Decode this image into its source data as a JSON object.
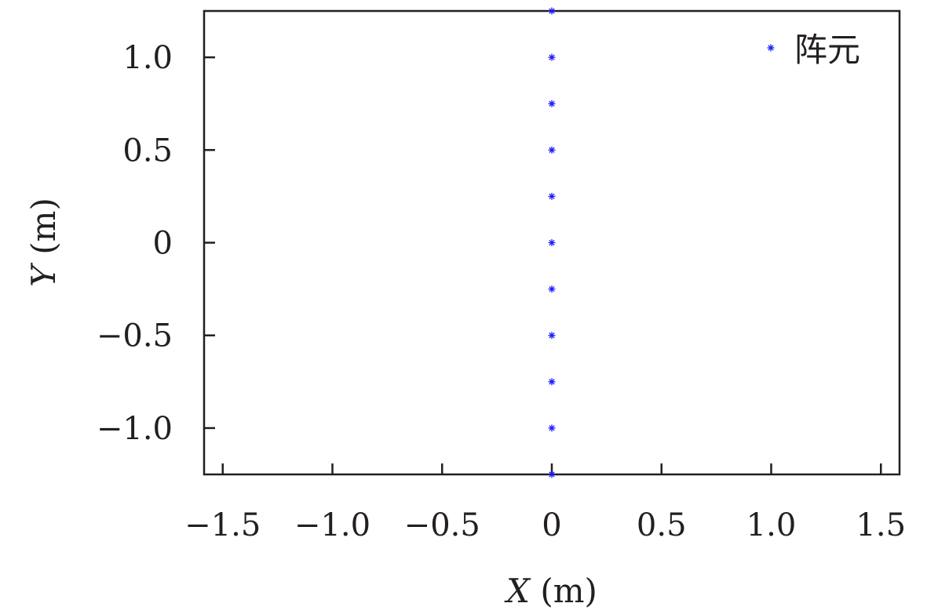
{
  "chart_data": {
    "type": "scatter",
    "title": "",
    "xlabel_var": "X",
    "xlabel_unit": " (m)",
    "ylabel_var": "Y",
    "ylabel_unit": " (m)",
    "xlim": [
      -1.585,
      1.585
    ],
    "ylim": [
      -1.25,
      1.25
    ],
    "xticks": [
      -1.5,
      -1.0,
      -0.5,
      0,
      0.5,
      1.0,
      1.5
    ],
    "xtick_labels": [
      "−1.5",
      "−1.0",
      "−0.5",
      "0",
      "0.5",
      "1.0",
      "1.5"
    ],
    "yticks": [
      -1.0,
      -0.5,
      0,
      0.5,
      1.0
    ],
    "ytick_labels": [
      "−1.0",
      "−0.5",
      "0",
      "0.5",
      "1.0"
    ],
    "legend_position": "top-right",
    "grid": false,
    "series": [
      {
        "name": "阵元",
        "color": "#1a1aff",
        "marker": "asterisk",
        "x": [
          0,
          0,
          0,
          0,
          0,
          0,
          0,
          0,
          0,
          0,
          0
        ],
        "y": [
          -1.25,
          -1.0,
          -0.75,
          -0.5,
          -0.25,
          0,
          0.25,
          0.5,
          0.75,
          1.0,
          1.25
        ]
      }
    ]
  }
}
